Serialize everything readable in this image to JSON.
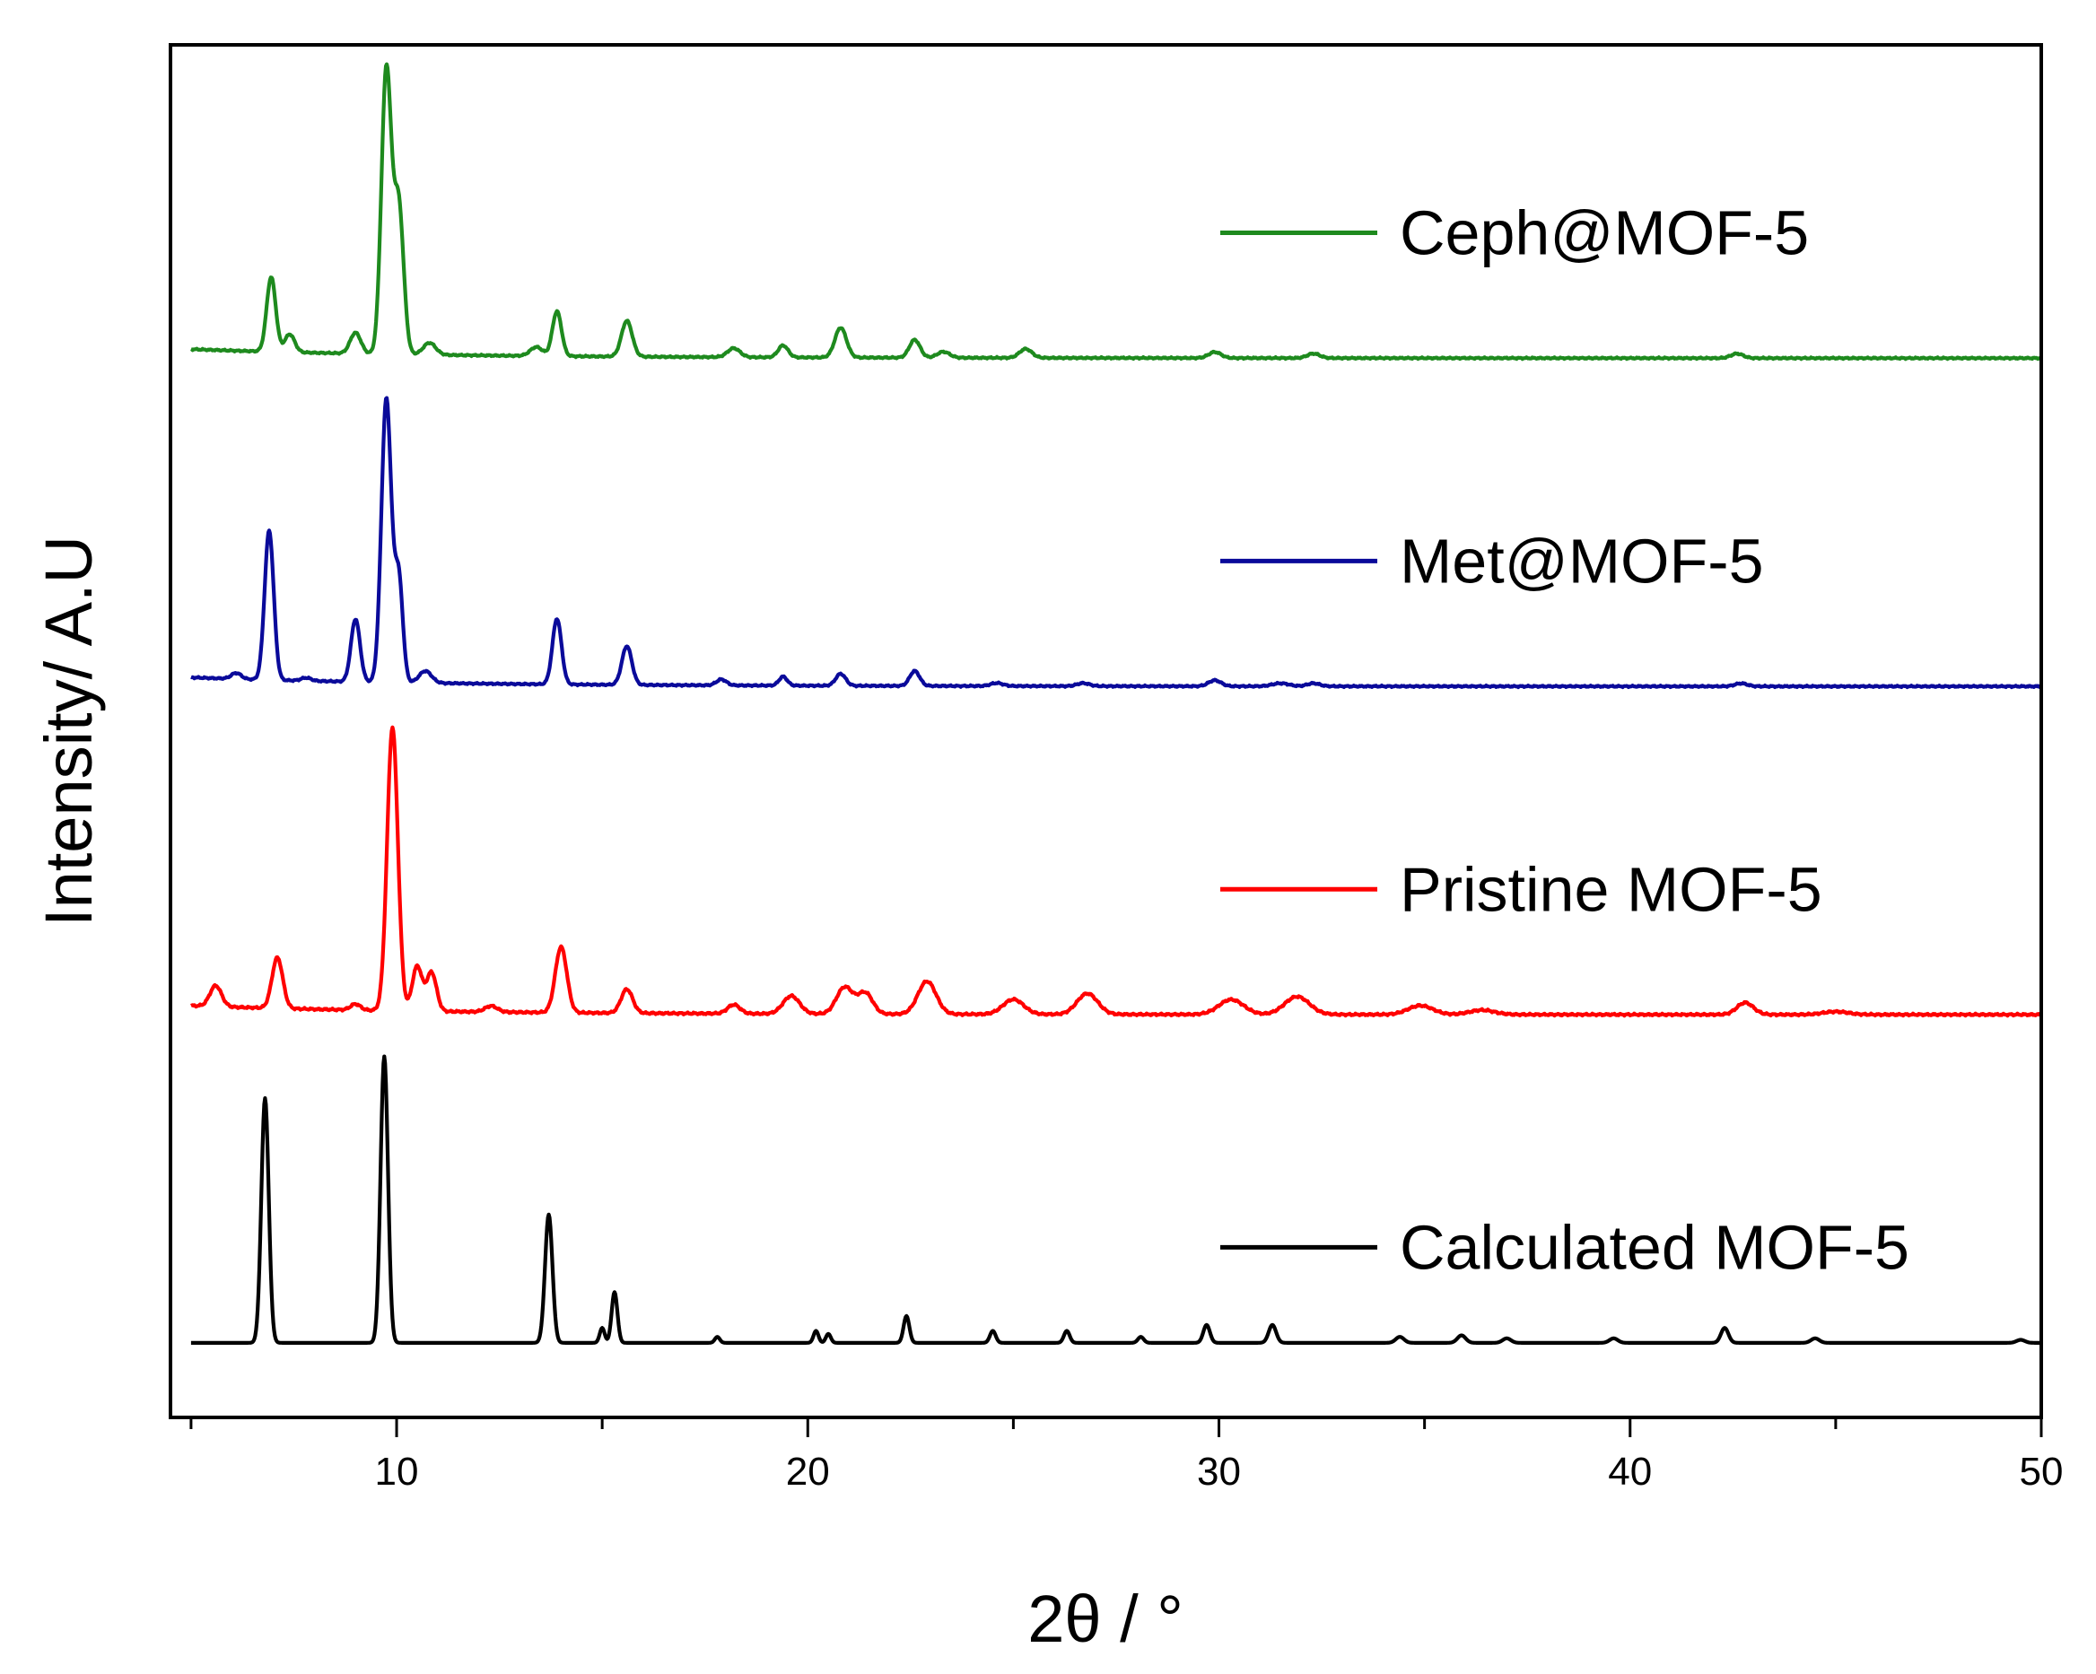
{
  "chart_data": {
    "type": "line",
    "title": "",
    "xlabel": "2θ / °",
    "ylabel": "Intensity/ A.U",
    "xlim": [
      4.5,
      50
    ],
    "ylim": [
      0,
      4.6
    ],
    "xticks": [
      10,
      20,
      30,
      40,
      50
    ],
    "xtick_labels": [
      "10",
      "20",
      "30",
      "40",
      "50"
    ],
    "yticks_visible": false,
    "grid": false,
    "legend_placement": "right, beside each trace",
    "series": [
      {
        "name": "Calculated MOF-5",
        "color": "#000000",
        "baseline": 0.25,
        "noise": 0.0,
        "peaks": [
          [
            6.8,
            0.82,
            0.09
          ],
          [
            9.7,
            0.96,
            0.09
          ],
          [
            13.7,
            0.43,
            0.09
          ],
          [
            15.0,
            0.05,
            0.06
          ],
          [
            15.3,
            0.17,
            0.07
          ],
          [
            17.8,
            0.02,
            0.06
          ],
          [
            20.2,
            0.04,
            0.06
          ],
          [
            20.5,
            0.03,
            0.06
          ],
          [
            22.4,
            0.09,
            0.07
          ],
          [
            24.5,
            0.04,
            0.07
          ],
          [
            26.3,
            0.04,
            0.07
          ],
          [
            28.1,
            0.02,
            0.07
          ],
          [
            29.7,
            0.06,
            0.08
          ],
          [
            31.3,
            0.06,
            0.09
          ],
          [
            34.4,
            0.02,
            0.1
          ],
          [
            35.9,
            0.025,
            0.1
          ],
          [
            37.0,
            0.015,
            0.1
          ],
          [
            39.6,
            0.015,
            0.1
          ],
          [
            42.3,
            0.05,
            0.09
          ],
          [
            44.5,
            0.015,
            0.1
          ],
          [
            49.5,
            0.01,
            0.1
          ]
        ]
      },
      {
        "name": "Pristine MOF-5",
        "color": "#ff0000",
        "baseline": 1.35,
        "noise": 0.004,
        "peaks": [
          [
            5.6,
            0.07,
            0.14
          ],
          [
            7.1,
            0.17,
            0.13
          ],
          [
            9.0,
            0.02,
            0.12
          ],
          [
            9.9,
            0.95,
            0.13
          ],
          [
            10.5,
            0.15,
            0.12
          ],
          [
            10.85,
            0.13,
            0.12
          ],
          [
            12.3,
            0.02,
            0.15
          ],
          [
            14.0,
            0.22,
            0.14
          ],
          [
            15.6,
            0.08,
            0.14
          ],
          [
            18.2,
            0.03,
            0.15
          ],
          [
            19.6,
            0.06,
            0.2
          ],
          [
            20.9,
            0.09,
            0.2
          ],
          [
            21.4,
            0.07,
            0.18
          ],
          [
            22.9,
            0.11,
            0.22
          ],
          [
            25.0,
            0.05,
            0.25
          ],
          [
            26.8,
            0.07,
            0.25
          ],
          [
            30.3,
            0.05,
            0.3
          ],
          [
            31.9,
            0.06,
            0.3
          ],
          [
            34.9,
            0.03,
            0.3
          ],
          [
            36.4,
            0.015,
            0.3
          ],
          [
            42.8,
            0.04,
            0.2
          ],
          [
            45.0,
            0.01,
            0.3
          ]
        ]
      },
      {
        "name": "Met@MOF-5",
        "color": "#0a0a9a",
        "baseline": 2.45,
        "noise": 0.003,
        "peaks": [
          [
            6.1,
            0.02,
            0.12
          ],
          [
            6.9,
            0.5,
            0.11
          ],
          [
            7.8,
            0.01,
            0.12
          ],
          [
            9.0,
            0.21,
            0.11
          ],
          [
            9.75,
            0.95,
            0.12
          ],
          [
            10.05,
            0.35,
            0.1
          ],
          [
            10.7,
            0.04,
            0.15
          ],
          [
            13.9,
            0.22,
            0.11
          ],
          [
            15.6,
            0.13,
            0.12
          ],
          [
            17.9,
            0.02,
            0.12
          ],
          [
            19.4,
            0.03,
            0.1
          ],
          [
            20.8,
            0.04,
            0.12
          ],
          [
            22.6,
            0.05,
            0.12
          ],
          [
            24.6,
            0.01,
            0.15
          ],
          [
            26.7,
            0.01,
            0.15
          ],
          [
            29.9,
            0.02,
            0.15
          ],
          [
            31.5,
            0.01,
            0.2
          ],
          [
            32.3,
            0.01,
            0.15
          ],
          [
            42.7,
            0.01,
            0.15
          ]
        ]
      },
      {
        "name": "Ceph@MOF-5",
        "color": "#1e8a1e",
        "baseline": 3.55,
        "noise": 0.003,
        "peaks": [
          [
            6.95,
            0.25,
            0.11
          ],
          [
            7.4,
            0.06,
            0.12
          ],
          [
            9.0,
            0.07,
            0.13
          ],
          [
            9.75,
            0.95,
            0.12
          ],
          [
            10.05,
            0.5,
            0.12
          ],
          [
            10.8,
            0.04,
            0.15
          ],
          [
            13.4,
            0.03,
            0.15
          ],
          [
            13.9,
            0.15,
            0.11
          ],
          [
            15.6,
            0.12,
            0.13
          ],
          [
            18.2,
            0.03,
            0.15
          ],
          [
            19.4,
            0.04,
            0.12
          ],
          [
            20.8,
            0.1,
            0.14
          ],
          [
            22.6,
            0.06,
            0.13
          ],
          [
            23.3,
            0.02,
            0.15
          ],
          [
            25.3,
            0.03,
            0.15
          ],
          [
            29.9,
            0.02,
            0.15
          ],
          [
            32.3,
            0.015,
            0.15
          ],
          [
            42.6,
            0.015,
            0.15
          ]
        ]
      }
    ],
    "series_order_top_to_bottom": [
      "Ceph@MOF-5",
      "Met@MOF-5",
      "Pristine MOF-5",
      "Calculated MOF-5"
    ]
  }
}
